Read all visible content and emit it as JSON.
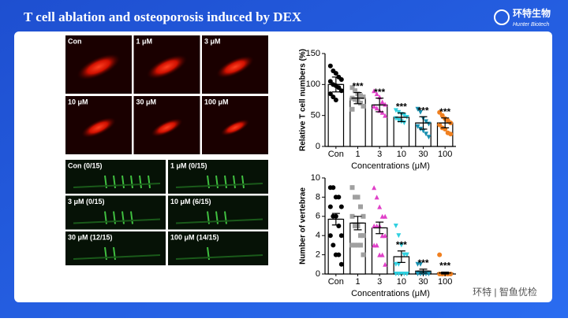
{
  "header": {
    "title": "T cell ablation and osteoporosis induced by DEX",
    "logo": "环特生物",
    "logo_sub": "Hunter Biotech"
  },
  "panels": {
    "red_labels": [
      "Con",
      "1 μM",
      "3 μM",
      "10 μM",
      "30 μM",
      "100 μM"
    ],
    "green_labels": [
      "Con (0/15)",
      "1 μM (0/15)",
      "3 μM (0/15)",
      "10 μM (6/15)",
      "30 μM (12/15)",
      "100 μM (14/15)"
    ]
  },
  "watermark": "环特 | 智鱼优检",
  "chart_data": [
    {
      "type": "bar",
      "ylabel": "Relative T cell numbers (%)",
      "xlabel": "Concentrations (μM)",
      "categories": [
        "Con",
        "1",
        "3",
        "10",
        "30",
        "100"
      ],
      "values": [
        100,
        78,
        67,
        47,
        38,
        38
      ],
      "errors": [
        12,
        9,
        11,
        7,
        10,
        8
      ],
      "annotations": [
        null,
        "***",
        "***",
        "***",
        "***",
        "***"
      ],
      "colors": [
        "#000000",
        "#a0a0a0",
        "#e040c8",
        "#30d0e0",
        "#1890b0",
        "#f08020"
      ],
      "markers": [
        "circle",
        "square",
        "triangle",
        "triangle-down",
        "triangle-down",
        "circle"
      ],
      "points": [
        [
          130,
          122,
          118,
          112,
          108,
          105,
          100,
          98,
          95,
          90,
          85,
          80,
          75
        ],
        [
          95,
          90,
          85,
          82,
          80,
          78,
          76,
          74,
          70,
          65,
          60
        ],
        [
          90,
          85,
          80,
          72,
          68,
          65,
          62,
          58,
          55,
          50
        ],
        [
          58,
          55,
          52,
          50,
          47,
          45,
          42,
          40,
          38
        ],
        [
          60,
          55,
          45,
          40,
          36,
          32,
          28,
          25,
          20,
          15
        ],
        [
          55,
          50,
          45,
          42,
          38,
          35,
          30,
          28,
          22,
          20
        ]
      ],
      "ylim": [
        0,
        150
      ],
      "yticks": [
        0,
        50,
        100,
        150
      ]
    },
    {
      "type": "bar",
      "ylabel": "Number of vertebrae",
      "xlabel": "Concentrations (μM)",
      "categories": [
        "Con",
        "1",
        "3",
        "10",
        "30",
        "100"
      ],
      "values": [
        5.7,
        5.3,
        4.8,
        1.8,
        0.3,
        0.1
      ],
      "errors": [
        0.6,
        0.7,
        0.6,
        0.6,
        0.2,
        0.1
      ],
      "annotations": [
        null,
        null,
        null,
        "***",
        "***",
        "***"
      ],
      "colors": [
        "#000000",
        "#a0a0a0",
        "#e040c8",
        "#30d0e0",
        "#1890b0",
        "#f08020"
      ],
      "markers": [
        "circle",
        "square",
        "triangle",
        "triangle-down",
        "triangle-down",
        "circle"
      ],
      "points": [
        [
          9,
          9,
          8,
          8,
          7,
          7,
          6,
          6,
          5,
          4,
          4,
          3,
          2,
          2,
          1
        ],
        [
          9,
          8,
          8,
          7,
          6,
          6,
          5,
          5,
          4,
          4,
          3,
          3,
          3,
          3,
          2
        ],
        [
          9,
          8,
          7,
          6,
          6,
          5,
          5,
          5,
          4,
          4,
          3,
          3,
          2,
          2,
          1
        ],
        [
          5,
          4,
          3,
          2,
          2,
          1,
          1,
          0,
          0,
          0,
          0,
          0
        ],
        [
          1,
          1,
          0,
          0,
          0,
          0,
          0,
          0
        ],
        [
          2,
          0,
          0,
          0,
          0,
          0,
          0
        ]
      ],
      "ylim": [
        0,
        10
      ],
      "yticks": [
        0,
        2,
        4,
        6,
        8,
        10
      ]
    }
  ]
}
